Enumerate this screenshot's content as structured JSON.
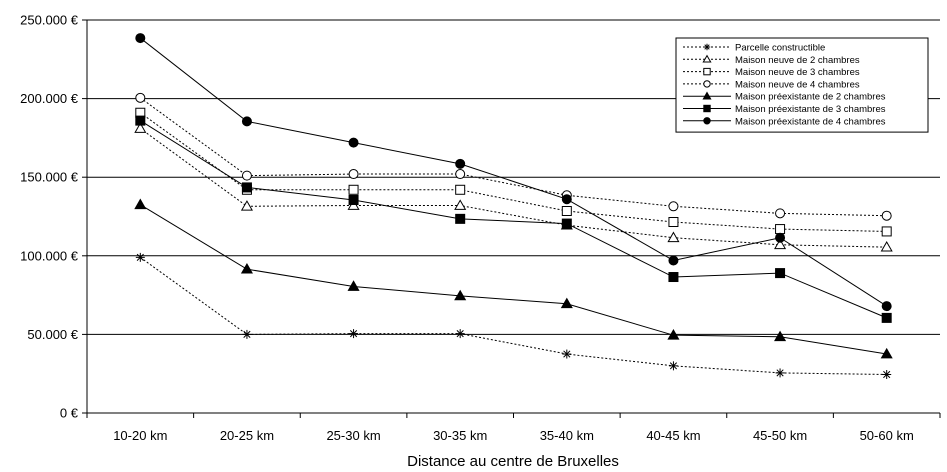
{
  "chart_data": {
    "type": "line",
    "title": "",
    "xlabel": "Distance au centre de Bruxelles",
    "ylabel": "",
    "categories": [
      "10-20 km",
      "20-25 km",
      "25-30 km",
      "30-35 km",
      "35-40 km",
      "40-45 km",
      "45-50 km",
      "50-60 km"
    ],
    "ylim": [
      0,
      250000
    ],
    "yticks": [
      0,
      50000,
      100000,
      150000,
      200000,
      250000
    ],
    "ytick_labels": [
      "0 €",
      "50.000 €",
      "100.000 €",
      "150.000 €",
      "200.000 €",
      "250.000 €"
    ],
    "grid": "horizontal",
    "legend_position": "top-right",
    "series": [
      {
        "name": "Parcelle constructible",
        "style": "dashed",
        "marker": "asterisk",
        "color": "#000000",
        "values": [
          99000,
          50000,
          50500,
          50500,
          37500,
          30000,
          25500,
          24500
        ]
      },
      {
        "name": "Maison neuve de 2 chambres",
        "style": "dashed",
        "marker": "triangle-open",
        "color": "#000000",
        "values": [
          181000,
          131500,
          132000,
          132000,
          119500,
          111500,
          107000,
          105500
        ]
      },
      {
        "name": "Maison neuve de 3 chambres",
        "style": "dashed",
        "marker": "square-open",
        "color": "#000000",
        "values": [
          191000,
          142000,
          142000,
          142000,
          128500,
          121500,
          117000,
          115500
        ]
      },
      {
        "name": "Maison neuve de 4 chambres",
        "style": "dashed",
        "marker": "circle-open",
        "color": "#000000",
        "values": [
          200500,
          151000,
          152000,
          152000,
          138500,
          131500,
          127000,
          125500
        ]
      },
      {
        "name": "Maison préexistante de 2 chambres",
        "style": "solid",
        "marker": "triangle-filled",
        "color": "#000000",
        "values": [
          132500,
          91500,
          80500,
          74500,
          69500,
          49500,
          48500,
          37500
        ]
      },
      {
        "name": "Maison préexistante de 3 chambres",
        "style": "solid",
        "marker": "square-filled",
        "color": "#000000",
        "values": [
          186000,
          143500,
          135500,
          123500,
          120500,
          86500,
          89000,
          60500
        ]
      },
      {
        "name": "Maison préexistante de 4 chambres",
        "style": "solid",
        "marker": "circle-filled",
        "color": "#000000",
        "values": [
          238500,
          185500,
          172000,
          158500,
          136000,
          97000,
          111500,
          68000
        ]
      }
    ]
  }
}
